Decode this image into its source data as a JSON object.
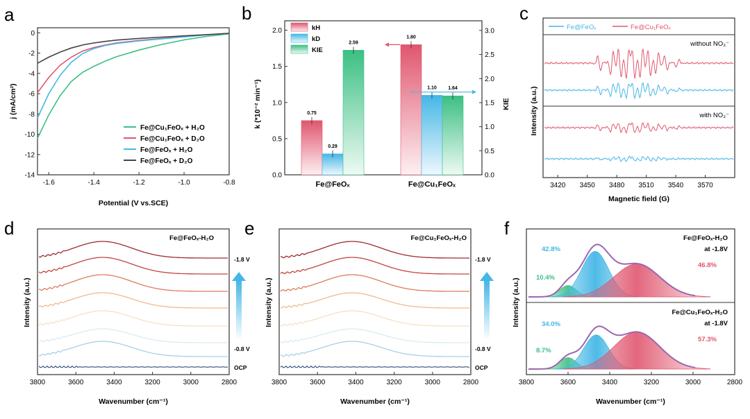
{
  "colors": {
    "green": "#3cbf83",
    "red": "#e0566f",
    "blue": "#45b7e6",
    "black": "#444444",
    "purple": "#9b66b0",
    "navy": "#2e4a7a",
    "arrow": "#45b7e6"
  },
  "panels": {
    "a": {
      "label": "a"
    },
    "b": {
      "label": "b"
    },
    "c": {
      "label": "c"
    },
    "d": {
      "label": "d"
    },
    "e": {
      "label": "e"
    },
    "f": {
      "label": "f"
    }
  },
  "chart_data": [
    {
      "id": "a",
      "type": "line",
      "xlabel": "Potential (V vs.SCE)",
      "ylabel": "j (mA/cm²)",
      "xlim": [
        -1.65,
        -0.8
      ],
      "ylim": [
        -14,
        0.5
      ],
      "xticks": [
        -1.6,
        -1.4,
        -1.2,
        -1.0,
        -0.8
      ],
      "xtick_labels": [
        "-1.6",
        "-1.4",
        "-1.2",
        "-1.0",
        "-0.8"
      ],
      "yticks": [
        0,
        -2,
        -4,
        -6,
        -8,
        -10,
        -12,
        -14
      ],
      "ytick_labels": [
        "0",
        "-2",
        "-4",
        "-6",
        "-8",
        "-10",
        "-12",
        "-14"
      ],
      "legend_position": "bottom-right",
      "series": [
        {
          "name": "Fe@Cu₁FeOₓ + H₂O",
          "color": "#3cbf83",
          "x": [
            -1.65,
            -1.6,
            -1.55,
            -1.5,
            -1.45,
            -1.4,
            -1.35,
            -1.3,
            -1.2,
            -1.1,
            -1.0,
            -0.9,
            -0.8
          ],
          "y": [
            -10.4,
            -8.1,
            -6.2,
            -4.8,
            -3.9,
            -3.3,
            -2.8,
            -2.35,
            -1.7,
            -1.15,
            -0.7,
            -0.35,
            -0.1
          ]
        },
        {
          "name": "Fe@Cu₁FeOₓ + D₂O",
          "color": "#e0566f",
          "x": [
            -1.65,
            -1.6,
            -1.55,
            -1.5,
            -1.45,
            -1.4,
            -1.35,
            -1.3,
            -1.2,
            -1.1,
            -1.0,
            -0.9,
            -0.8
          ],
          "y": [
            -5.9,
            -4.4,
            -3.2,
            -2.4,
            -1.8,
            -1.45,
            -1.2,
            -1.0,
            -0.75,
            -0.55,
            -0.35,
            -0.2,
            -0.05
          ]
        },
        {
          "name": "Fe@FeOₓ + H₂O",
          "color": "#45b7e6",
          "x": [
            -1.65,
            -1.6,
            -1.55,
            -1.5,
            -1.45,
            -1.4,
            -1.35,
            -1.3,
            -1.2,
            -1.1,
            -1.0,
            -0.9,
            -0.8
          ],
          "y": [
            -8.4,
            -6.0,
            -4.2,
            -2.9,
            -2.05,
            -1.55,
            -1.25,
            -1.05,
            -0.8,
            -0.6,
            -0.4,
            -0.2,
            -0.05
          ]
        },
        {
          "name": "Fe@FeOₓ + D₂O",
          "color": "#444444",
          "x": [
            -1.65,
            -1.6,
            -1.55,
            -1.5,
            -1.45,
            -1.4,
            -1.35,
            -1.3,
            -1.2,
            -1.1,
            -1.0,
            -0.9,
            -0.8
          ],
          "y": [
            -3.0,
            -2.4,
            -1.9,
            -1.5,
            -1.2,
            -1.0,
            -0.85,
            -0.72,
            -0.55,
            -0.42,
            -0.3,
            -0.18,
            -0.05
          ]
        }
      ]
    },
    {
      "id": "b",
      "type": "bar",
      "xlabel": "",
      "ylabel": "k (*10⁻² min⁻¹)",
      "ylabel_right": "KIE",
      "ylim": [
        0,
        2.0
      ],
      "ylim_right": [
        0,
        3.2
      ],
      "yticks": [
        0.0,
        0.5,
        1.0,
        1.5,
        2.0
      ],
      "ytick_labels": [
        "0.0",
        "0.5",
        "1.0",
        "1.5",
        "2.0"
      ],
      "yticks_right": [
        0.0,
        0.5,
        1.0,
        1.5,
        2.0,
        2.5,
        3.0
      ],
      "ytick_labels_right": [
        "0.0",
        "0.5",
        "1.0",
        "1.5",
        "2.0",
        "2.5",
        "3.0"
      ],
      "categories": [
        "Fe@FeOₓ",
        "Fe@Cu₁FeOₓ"
      ],
      "legend_position": "top-left",
      "series": [
        {
          "name": "k_H",
          "legend": "kH",
          "color": "#e0566f",
          "axis": "left",
          "values": [
            0.75,
            1.8
          ],
          "labels": [
            "0.75",
            "1.80"
          ]
        },
        {
          "name": "k_D",
          "legend": "kD",
          "color": "#45b7e6",
          "axis": "left",
          "values": [
            0.29,
            1.1
          ],
          "labels": [
            "0.29",
            "1.10"
          ]
        },
        {
          "name": "KIE",
          "legend": "KIE",
          "color": "#3cbf83",
          "axis": "right",
          "values": [
            2.59,
            1.64
          ],
          "labels": [
            "2.59",
            "1.64"
          ]
        }
      ]
    },
    {
      "id": "c",
      "type": "line",
      "xlabel": "Magnetic field (G)",
      "ylabel": "Intensity (a.u.)",
      "xlim": [
        3405,
        3600
      ],
      "xticks": [
        3420,
        3450,
        3480,
        3510,
        3540,
        3570
      ],
      "xtick_labels": [
        "3420",
        "3450",
        "3480",
        "3510",
        "3540",
        "3570"
      ],
      "legend": [
        {
          "name": "Fe@FeOₓ",
          "color": "#45b7e6"
        },
        {
          "name": "Fe@Cu₁FeOₓ",
          "color": "#e0566f"
        }
      ],
      "annotations": [
        "without NO₃⁻",
        "with NO₃⁻"
      ],
      "traces": [
        {
          "name": "Fe@Cu₁FeOₓ without NO₃⁻",
          "color": "#e0566f",
          "amplitude": 1.0
        },
        {
          "name": "Fe@FeOₓ without NO₃⁻",
          "color": "#45b7e6",
          "amplitude": 0.5
        },
        {
          "name": "Fe@Cu₁FeOₓ with NO₃⁻",
          "color": "#e0566f",
          "amplitude": 0.35
        },
        {
          "name": "Fe@FeOₓ with NO₃⁻",
          "color": "#45b7e6",
          "amplitude": 0.15
        }
      ]
    },
    {
      "id": "d",
      "type": "line",
      "title": "Fe@FeOₓ-H₂O",
      "xlabel": "Wavenumber (cm⁻¹)",
      "ylabel": "Intensity (a.u.)",
      "xlim": [
        3800,
        2800
      ],
      "xticks": [
        3800,
        3600,
        3400,
        3200,
        3000,
        2800
      ],
      "xtick_labels": [
        "3800",
        "3600",
        "3400",
        "3200",
        "3000",
        "2800"
      ],
      "peak_center": 3460,
      "annotations": [
        "-1.8 V",
        "-0.8 V",
        "OCP"
      ],
      "series_colors": [
        "#9e2a2f",
        "#c1443e",
        "#df7a5a",
        "#f0b98c",
        "#f6e0c4",
        "#d9ebf4",
        "#a9cfe4",
        "#4e79a7"
      ],
      "ocp_color": "#2e4a7a"
    },
    {
      "id": "e",
      "type": "line",
      "title": "Fe@Cu₁FeOₓ-H₂O",
      "xlabel": "Wavenumber (cm⁻¹)",
      "ylabel": "Intensity (a.u.)",
      "xlim": [
        3800,
        2800
      ],
      "xticks": [
        3800,
        3600,
        3400,
        3200,
        3000,
        2800
      ],
      "xtick_labels": [
        "3800",
        "3600",
        "3400",
        "3200",
        "3000",
        "2800"
      ],
      "peak_center": 3420,
      "annotations": [
        "-1.8 V",
        "-0.8 V",
        "OCP"
      ],
      "series_colors": [
        "#9e2a2f",
        "#c1443e",
        "#df7a5a",
        "#f0b98c",
        "#f6e0c4",
        "#d9ebf4",
        "#a9cfe4",
        "#4e79a7"
      ],
      "ocp_color": "#2e4a7a"
    },
    {
      "id": "f",
      "type": "area",
      "xlabel": "Wavenumber (cm⁻¹)",
      "ylabel": "Intensity (a.u.)",
      "xlim": [
        3800,
        2800
      ],
      "xticks": [
        3800,
        3600,
        3400,
        3200,
        3000,
        2800
      ],
      "xtick_labels": [
        "3800",
        "3600",
        "3400",
        "3200",
        "3000",
        "2800"
      ],
      "subplots": [
        {
          "title": "Fe@FeOₓ-H₂O",
          "condition": "at -1.8V",
          "components": [
            {
              "center": 3600,
              "height": 0.2,
              "width": 40,
              "color": "#3cbf83",
              "label": "10.4%"
            },
            {
              "center": 3470,
              "height": 0.8,
              "width": 65,
              "color": "#45b7e6",
              "label": "42.8%"
            },
            {
              "center": 3270,
              "height": 0.58,
              "width": 110,
              "color": "#e0566f",
              "label": "46.8%"
            }
          ]
        },
        {
          "title": "Fe@Cu₁FeOₓ-H₂O",
          "condition": "at -1.8V",
          "components": [
            {
              "center": 3600,
              "height": 0.2,
              "width": 40,
              "color": "#3cbf83",
              "label": "8.7%"
            },
            {
              "center": 3465,
              "height": 0.6,
              "width": 60,
              "color": "#45b7e6",
              "label": "34.0%"
            },
            {
              "center": 3270,
              "height": 0.65,
              "width": 110,
              "color": "#e0566f",
              "label": "57.3%"
            }
          ]
        }
      ]
    }
  ]
}
